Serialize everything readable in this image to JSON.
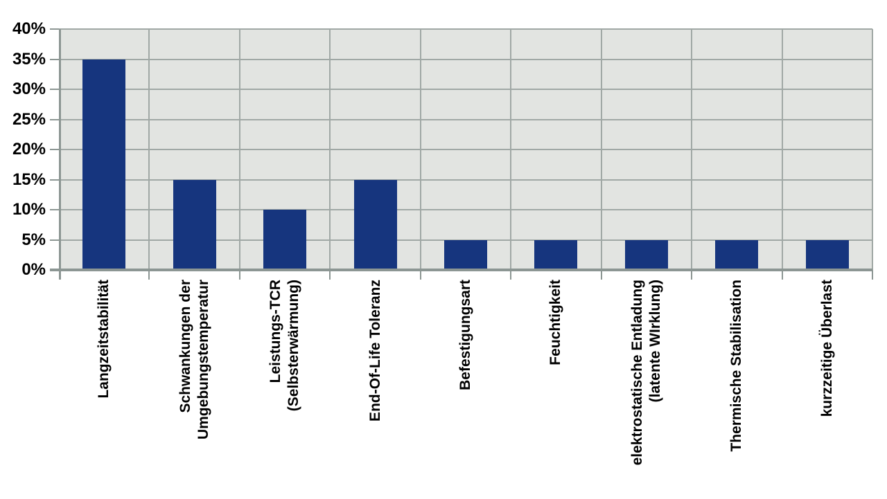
{
  "chart_data": {
    "type": "bar",
    "title": "",
    "xlabel": "",
    "ylabel": "",
    "unit": "%",
    "categories": [
      "Langzeitstabilität",
      "Schwankungen der Umgebungstemperatur",
      "Leistungs-TCR (Selbsterwärmung)",
      "End-Of-Life Toleranz",
      "Befestigungsart",
      "Feuchtigkeit",
      "elektrostatische Entladung (latente WIrklung)",
      "Thermische Stabilisation",
      "kurzzeitige Überlast"
    ],
    "category_lines": [
      [
        "Langzeitstabilität"
      ],
      [
        "Schwankungen der",
        "Umgebungstemperatur"
      ],
      [
        "Leistungs-TCR",
        "(Selbsterwärmung)"
      ],
      [
        "End-Of-Life Toleranz"
      ],
      [
        "Befestigungsart"
      ],
      [
        "Feuchtigkeit"
      ],
      [
        "elektrostatische Entladung",
        "(latente WIrklung)"
      ],
      [
        "Thermische Stabilisation"
      ],
      [
        "kurzzeitige Überlast"
      ]
    ],
    "values": [
      35,
      15,
      10,
      15,
      5,
      5,
      5,
      5,
      5
    ],
    "ylim": [
      0,
      40
    ],
    "ytick_step": 5,
    "ytick_labels": [
      "0%",
      "5%",
      "10%",
      "15%",
      "20%",
      "25%",
      "30%",
      "35%",
      "40%"
    ],
    "grid": true,
    "legend": null,
    "colors": {
      "bar": "#16357e",
      "plot_background": "#e2e4e1",
      "gridline": "#a0a8a5",
      "axis": "#8c9693",
      "text": "#000000",
      "page_background": "#ffffff"
    }
  }
}
